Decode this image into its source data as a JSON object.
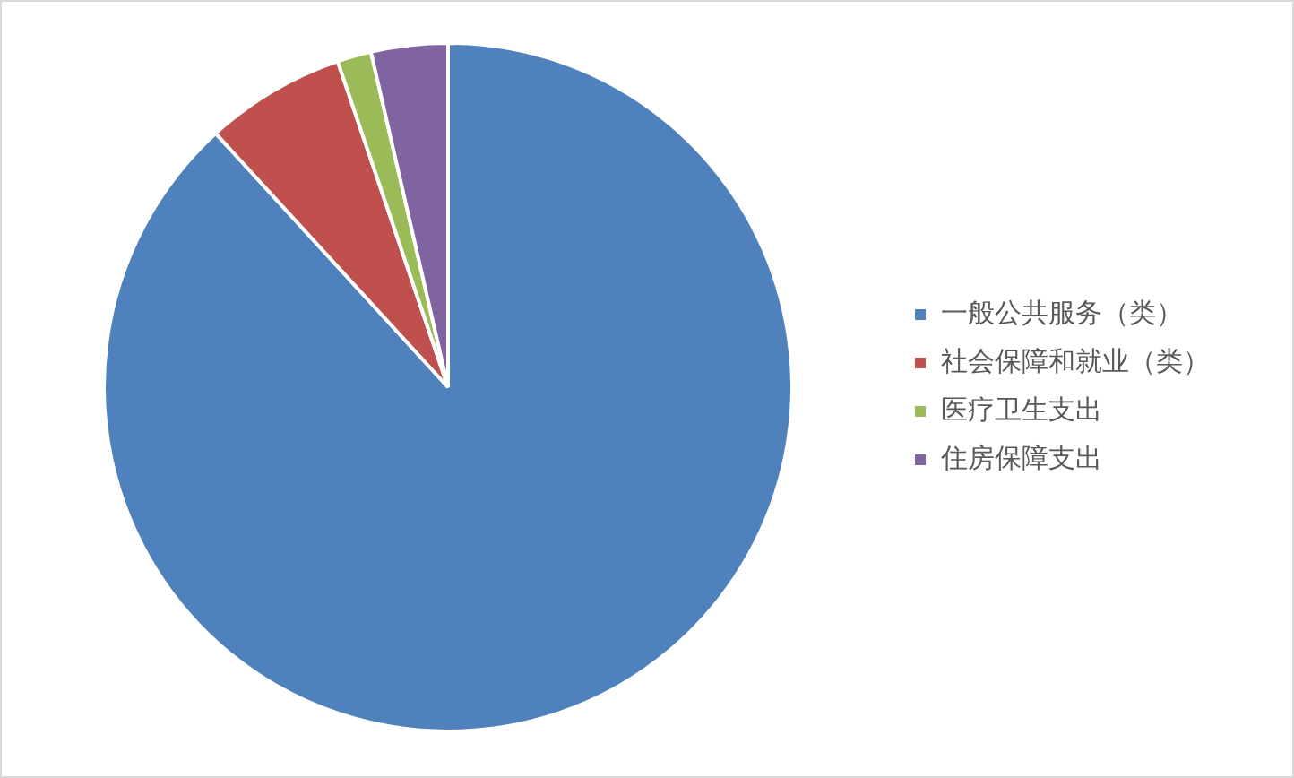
{
  "chart_data": {
    "type": "pie",
    "categories": [
      "一般公共服务（类）",
      "社会保障和就业（类）",
      "医疗卫生支出",
      "住房保障支出"
    ],
    "values": [
      88.2,
      6.6,
      1.6,
      3.6
    ],
    "colors": [
      "#4f81bd",
      "#c0504d",
      "#9bbb59",
      "#8064a2"
    ],
    "legend": "right"
  }
}
